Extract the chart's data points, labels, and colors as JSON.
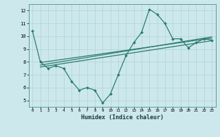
{
  "xlabel": "Humidex (Indice chaleur)",
  "ylabel": "",
  "bg_color": "#cce8ec",
  "grid_color": "#b8d8dc",
  "line_color": "#2a7a70",
  "xlim": [
    -0.5,
    23.5
  ],
  "ylim": [
    4.5,
    12.5
  ],
  "xticks": [
    0,
    1,
    2,
    3,
    4,
    5,
    6,
    7,
    8,
    9,
    10,
    11,
    12,
    13,
    14,
    15,
    16,
    17,
    18,
    19,
    20,
    21,
    22,
    23
  ],
  "yticks": [
    5,
    6,
    7,
    8,
    9,
    10,
    11,
    12
  ],
  "main_x": [
    0,
    1,
    2,
    3,
    4,
    5,
    6,
    7,
    8,
    9,
    10,
    11,
    12,
    13,
    14,
    15,
    16,
    17,
    18,
    19,
    20,
    21,
    22,
    23
  ],
  "main_y": [
    10.4,
    8.0,
    7.5,
    7.7,
    7.5,
    6.5,
    5.8,
    6.0,
    5.8,
    4.8,
    5.5,
    7.0,
    8.5,
    9.5,
    10.3,
    12.1,
    11.7,
    11.0,
    9.8,
    9.8,
    9.1,
    9.5,
    9.8,
    9.7
  ],
  "trend1_x": [
    1,
    23
  ],
  "trend1_y": [
    7.95,
    9.85
  ],
  "trend2_x": [
    1,
    23
  ],
  "trend2_y": [
    7.75,
    9.95
  ],
  "trend3_x": [
    1,
    23
  ],
  "trend3_y": [
    7.6,
    9.65
  ]
}
